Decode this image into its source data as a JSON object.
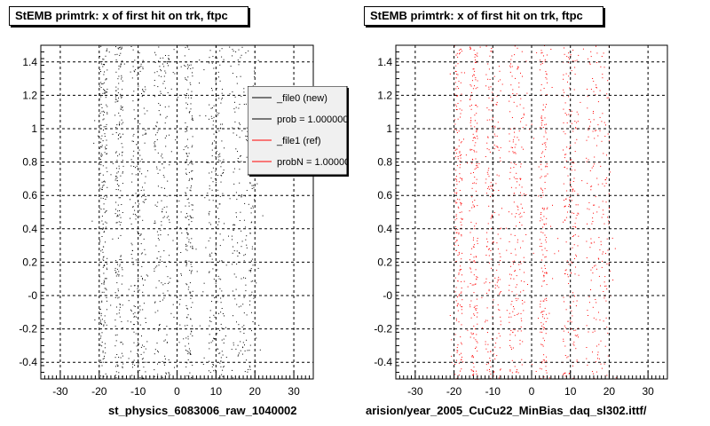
{
  "pads": [
    {
      "title": "StEMB primtrk: x of first hit on trk, ftpc",
      "footer": "st_physics_6083006_raw_1040002",
      "legend": {
        "entries": [
          {
            "label": "_file0 (new)",
            "color": "#000000"
          },
          {
            "label": "prob = 1.000000",
            "color": "#000000"
          },
          {
            "label": "_file1 (ref)",
            "color": "#ff0000"
          },
          {
            "label": "probN = 1.000000",
            "color": "#ff0000"
          }
        ]
      }
    },
    {
      "title": "StEMB primtrk: x of first hit on trk, ftpc",
      "footer": "arision/year_2005_CuCu22_MinBias_daq_sl302.ittf/"
    }
  ],
  "stamp": "",
  "chart_data": [
    {
      "type": "scatter",
      "title": "StEMB primtrk: x of first hit on trk, ftpc",
      "xlabel": "st_physics_6083006_raw_1040002",
      "ylabel": "",
      "xlim": [
        -35,
        35
      ],
      "ylim": [
        -0.5,
        1.5
      ],
      "xticks": [
        -30,
        -20,
        -10,
        0,
        10,
        20,
        30
      ],
      "yticks": [
        -0.4,
        -0.2,
        0,
        0.2,
        0.4,
        0.6,
        0.8,
        1,
        1.2,
        1.4
      ],
      "ytick_labels": [
        "-0.4",
        "-0.2",
        "-0",
        "0.2",
        "0.4",
        "0.6",
        "0.8",
        "1",
        "1.2",
        "1.4"
      ],
      "grid": true,
      "legend_position": "top-right",
      "series": [
        {
          "name": "_file0 (new)",
          "color": "#000000",
          "x_bands": [
            [
              -20,
              -18
            ],
            [
              -16,
              -14
            ],
            [
              -12,
              -8
            ],
            [
              -6,
              -2
            ],
            [
              2,
              4
            ],
            [
              8,
              12
            ],
            [
              14,
              20
            ]
          ],
          "y_range": [
            -0.5,
            1.5
          ],
          "approx_points": 1500
        }
      ]
    },
    {
      "type": "scatter",
      "title": "StEMB primtrk: x of first hit on trk, ftpc",
      "xlabel": "arision/year_2005_CuCu22_MinBias_daq_sl302.ittf/",
      "ylabel": "",
      "xlim": [
        -35,
        35
      ],
      "ylim": [
        -0.5,
        1.5
      ],
      "xticks": [
        -30,
        -20,
        -10,
        0,
        10,
        20,
        30
      ],
      "yticks": [
        -0.4,
        -0.2,
        0,
        0.2,
        0.4,
        0.6,
        0.8,
        1,
        1.2,
        1.4
      ],
      "ytick_labels": [
        "-0.4",
        "-0.2",
        "-0",
        "0.2",
        "0.4",
        "0.6",
        "0.8",
        "1",
        "1.2",
        "1.4"
      ],
      "grid": true,
      "series": [
        {
          "name": "_file1 (ref)",
          "color": "#ff0000",
          "x_bands": [
            [
              -20,
              -18
            ],
            [
              -16,
              -14
            ],
            [
              -12,
              -8
            ],
            [
              -6,
              -2
            ],
            [
              2,
              4
            ],
            [
              8,
              12
            ],
            [
              14,
              20
            ]
          ],
          "y_range": [
            -0.5,
            1.5
          ],
          "approx_points": 1400
        }
      ]
    }
  ]
}
